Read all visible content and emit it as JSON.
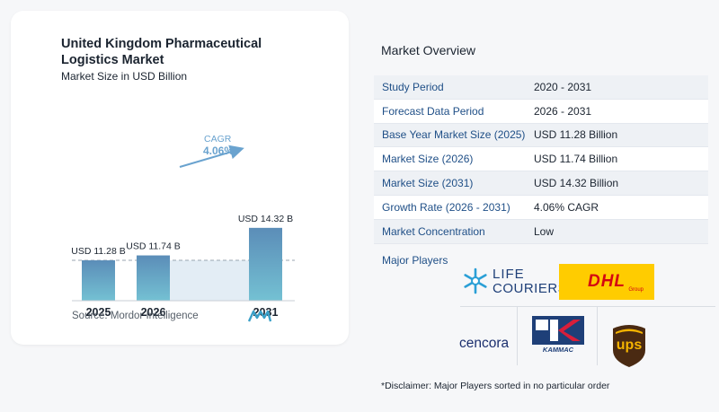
{
  "chart": {
    "title": "United Kingdom Pharmaceutical Logistics Market",
    "subtitle": "Market Size in USD Billion",
    "source": "Source:  Mordor Intelligence",
    "cagr_label": "CAGR",
    "cagr_value": "4.06%",
    "colors": {
      "bar": "#5b8db8",
      "bar_bottom": "#74c1d3",
      "shade": "#e3edf5",
      "arrow": "#6aa3cf"
    }
  },
  "chart_data": {
    "type": "bar",
    "categories": [
      "2025",
      "2026",
      "2031"
    ],
    "values": [
      11.28,
      11.74,
      14.32
    ],
    "data_labels": [
      "USD 11.28 B",
      "USD 11.74 B",
      "USD 14.32 B"
    ],
    "title": "United Kingdom Pharmaceutical Logistics Market",
    "subtitle": "Market Size in USD Billion",
    "xlabel": "",
    "ylabel": "",
    "grid": false
  },
  "overview": {
    "title": "Market Overview",
    "rows": [
      {
        "label": "Study Period",
        "value": "2020 - 2031"
      },
      {
        "label": "Forecast Data Period",
        "value": "2026 - 2031"
      },
      {
        "label": "Base Year Market Size (2025)",
        "value": "USD 11.28 Billion"
      },
      {
        "label": "Market Size (2026)",
        "value": "USD 11.74 Billion"
      },
      {
        "label": "Market Size (2031)",
        "value": "USD 14.32 Billion"
      },
      {
        "label": "Growth Rate (2026 - 2031)",
        "value": "4.06% CAGR"
      },
      {
        "label": "Market Concentration",
        "value": "Low"
      }
    ],
    "players_label": "Major Players",
    "players": [
      {
        "name": "LIFE COURIERS",
        "line1": "LIFE",
        "line2": "COURIERS"
      },
      {
        "name": "DHL",
        "text": "DHL",
        "sub": "Group"
      },
      {
        "name": "cencora",
        "text": "cencora"
      },
      {
        "name": "KAMMAC",
        "text": "KAMMAC"
      },
      {
        "name": "UPS",
        "text": "ups"
      }
    ],
    "disclaimer": "*Disclaimer: Major Players sorted in no particular order"
  }
}
